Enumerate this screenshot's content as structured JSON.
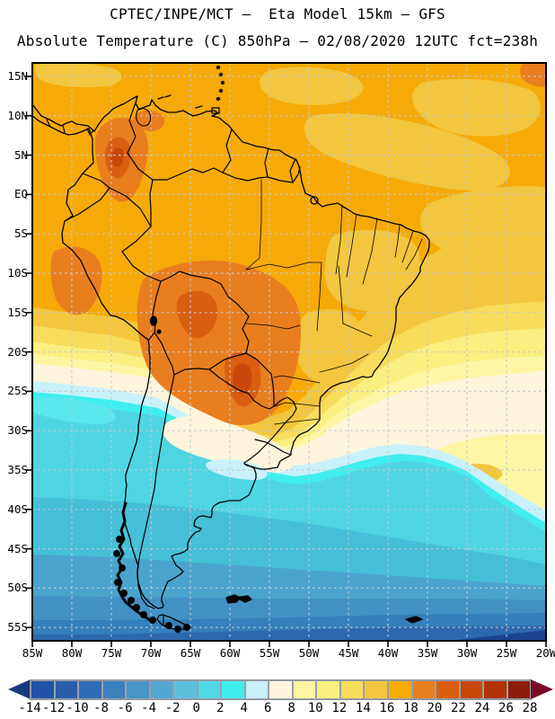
{
  "title": {
    "line1": "CPTEC/INPE/MCT —  Eta Model 15km — GFS",
    "line2": "Absolute Temperature (C) 850hPa — 02/08/2020 12UTC fct=238h"
  },
  "map": {
    "lat_ticks": [
      "15N",
      "10N",
      "5N",
      "EQ",
      "5S",
      "10S",
      "15S",
      "20S",
      "25S",
      "30S",
      "35S",
      "40S",
      "45S",
      "50S",
      "55S"
    ],
    "lon_ticks": [
      "85W",
      "80W",
      "75W",
      "70W",
      "65W",
      "60W",
      "55W",
      "50W",
      "45W",
      "40W",
      "35W",
      "30W",
      "25W",
      "20W"
    ],
    "grid_color": "#c3c7d2",
    "border_color": "#000000"
  },
  "colorbar": {
    "tick_labels": [
      "-14",
      "-12",
      "-10",
      "-8",
      "-6",
      "-4",
      "-2",
      "0",
      "2",
      "4",
      "6",
      "8",
      "10",
      "12",
      "14",
      "16",
      "18",
      "20",
      "22",
      "24",
      "26",
      "28"
    ],
    "cell_colors": [
      "#2153a7",
      "#2a5cab",
      "#2e6db6",
      "#3b80bf",
      "#4895c9",
      "#52a7d0",
      "#5bc1db",
      "#51d6e5",
      "#40eeee",
      "#c9f1fb",
      "#fdf5dc",
      "#fcf6a4",
      "#fbef81",
      "#f8dd5c",
      "#f2c63e",
      "#f6ac02",
      "#e87e1e",
      "#da5e10",
      "#c94708",
      "#b23307",
      "#8c1c0c"
    ],
    "left_arrow_color": "#1a3a7e",
    "right_arrow_color": "#7a0b28"
  },
  "chart_data": {
    "type": "heatmap",
    "title": "CPTEC/INPE/MCT —  Eta Model 15km — GFS",
    "subtitle": "Absolute Temperature (C) 850hPa — 02/08/2020 12UTC fct=238h",
    "units": "C",
    "x_tick_labels": [
      "85W",
      "80W",
      "75W",
      "70W",
      "65W",
      "60W",
      "55W",
      "50W",
      "45W",
      "40W",
      "35W",
      "30W",
      "25W",
      "20W"
    ],
    "y_tick_labels": [
      "15N",
      "10N",
      "5N",
      "EQ",
      "5S",
      "10S",
      "15S",
      "20S",
      "25S",
      "30S",
      "35S",
      "40S",
      "45S",
      "50S",
      "55S"
    ],
    "scale_values": [
      -14,
      -12,
      -10,
      -8,
      -6,
      -4,
      -2,
      0,
      2,
      4,
      6,
      8,
      10,
      12,
      14,
      16,
      18,
      20,
      22,
      24,
      26,
      28
    ],
    "legend_position": "bottom",
    "grid": true,
    "notable_features": [
      {
        "region": "tropical South America and tropical Atlantic",
        "approx_value_C": "14 to 20"
      },
      {
        "region": "Colombian Andes core",
        "approx_value_C": "22 to 24"
      },
      {
        "region": "Bolivia / Paraguay warm core",
        "approx_value_C": "20 to 24"
      },
      {
        "region": "cold front band from SE Pacific across Uruguay into S Atlantic",
        "approx_value_C": "0 to 6"
      },
      {
        "region": "Patagonia and far South Atlantic",
        "approx_value_C": "-10 to -4"
      }
    ]
  }
}
